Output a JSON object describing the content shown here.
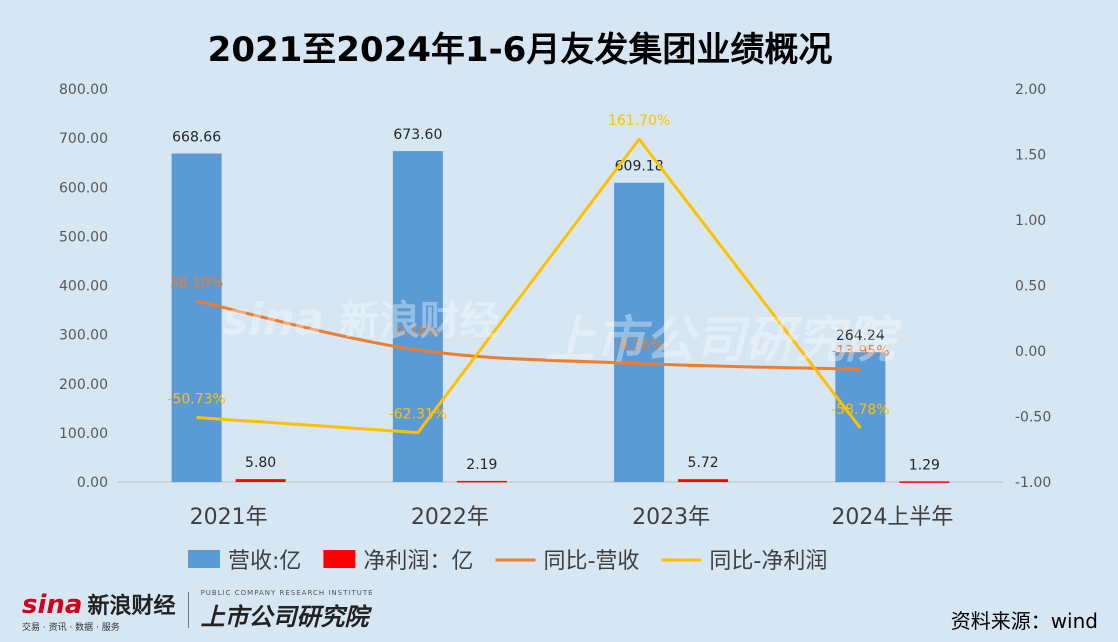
{
  "title": "2021至2024年1-6月友发集团业绩概况",
  "source": "资料来源：wind",
  "watermark": {
    "sina": "sina",
    "sina_cn": "新浪财经",
    "sina_sub": "交易 · 资讯 · 数据 · 服务",
    "spr_cn": "上市公司研究院",
    "spr_en": "PUBLIC COMPANY RESEARCH INSTITUTE"
  },
  "chart_data": {
    "type": "bar",
    "categories": [
      "2021年",
      "2022年",
      "2023年",
      "2024上半年"
    ],
    "series": [
      {
        "name": "营收:亿",
        "type": "bar",
        "axis": "left",
        "color": "#5b9bd5",
        "values": [
          668.66,
          673.6,
          609.18,
          264.24
        ],
        "labels": [
          "668.66",
          "673.60",
          "609.18",
          "264.24"
        ]
      },
      {
        "name": "净利润：亿",
        "type": "bar",
        "axis": "left",
        "color": "#ff0000",
        "values": [
          5.8,
          2.19,
          5.72,
          1.29
        ],
        "labels": [
          "5.80",
          "2.19",
          "5.72",
          "1.29"
        ]
      },
      {
        "name": "同比-营收",
        "type": "line",
        "axis": "right",
        "color": "#ed7d31",
        "values": [
          0.381,
          0.0074,
          -0.0956,
          -0.1395
        ],
        "labels": [
          "38.10%",
          "0.74%",
          "-9.56%",
          "-13.95%"
        ]
      },
      {
        "name": "同比-净利润",
        "type": "line",
        "axis": "right",
        "color": "#ffc000",
        "values": [
          -0.5073,
          -0.6231,
          1.617,
          -0.5878
        ],
        "labels": [
          "-50.73%",
          "-62.31%",
          "161.70%",
          "-58.78%"
        ]
      }
    ],
    "y_left": {
      "min": 0,
      "max": 800,
      "ticks": [
        "0.00",
        "100.00",
        "200.00",
        "300.00",
        "400.00",
        "500.00",
        "600.00",
        "700.00",
        "800.00"
      ]
    },
    "y_right": {
      "min": -1,
      "max": 2,
      "ticks": [
        "-1.00",
        "-0.50",
        "0.00",
        "0.50",
        "1.00",
        "1.50",
        "2.00"
      ]
    },
    "grid": false,
    "legend_position": "bottom"
  }
}
